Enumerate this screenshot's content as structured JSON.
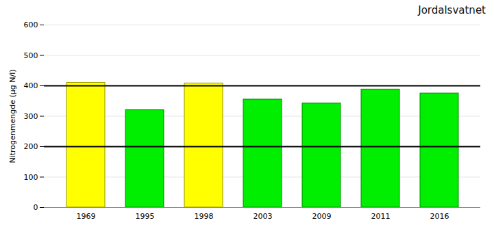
{
  "chart_data": {
    "type": "bar",
    "title": "Jordalsvatnet",
    "categories": [
      "1969",
      "1995",
      "1998",
      "2003",
      "2009",
      "2011",
      "2016"
    ],
    "values": [
      410,
      320,
      408,
      355,
      342,
      388,
      375
    ],
    "colors": [
      "#FFFF00",
      "#00EE00",
      "#FFFF00",
      "#00EE00",
      "#00EE00",
      "#00EE00",
      "#00EE00"
    ],
    "hlines": [
      200,
      400
    ],
    "ylabel": "Nitrogenmengde (µg N/l)",
    "ylim": [
      0,
      600
    ],
    "yticks": [
      0,
      100,
      200,
      300,
      400,
      500,
      600
    ],
    "grid": true
  }
}
